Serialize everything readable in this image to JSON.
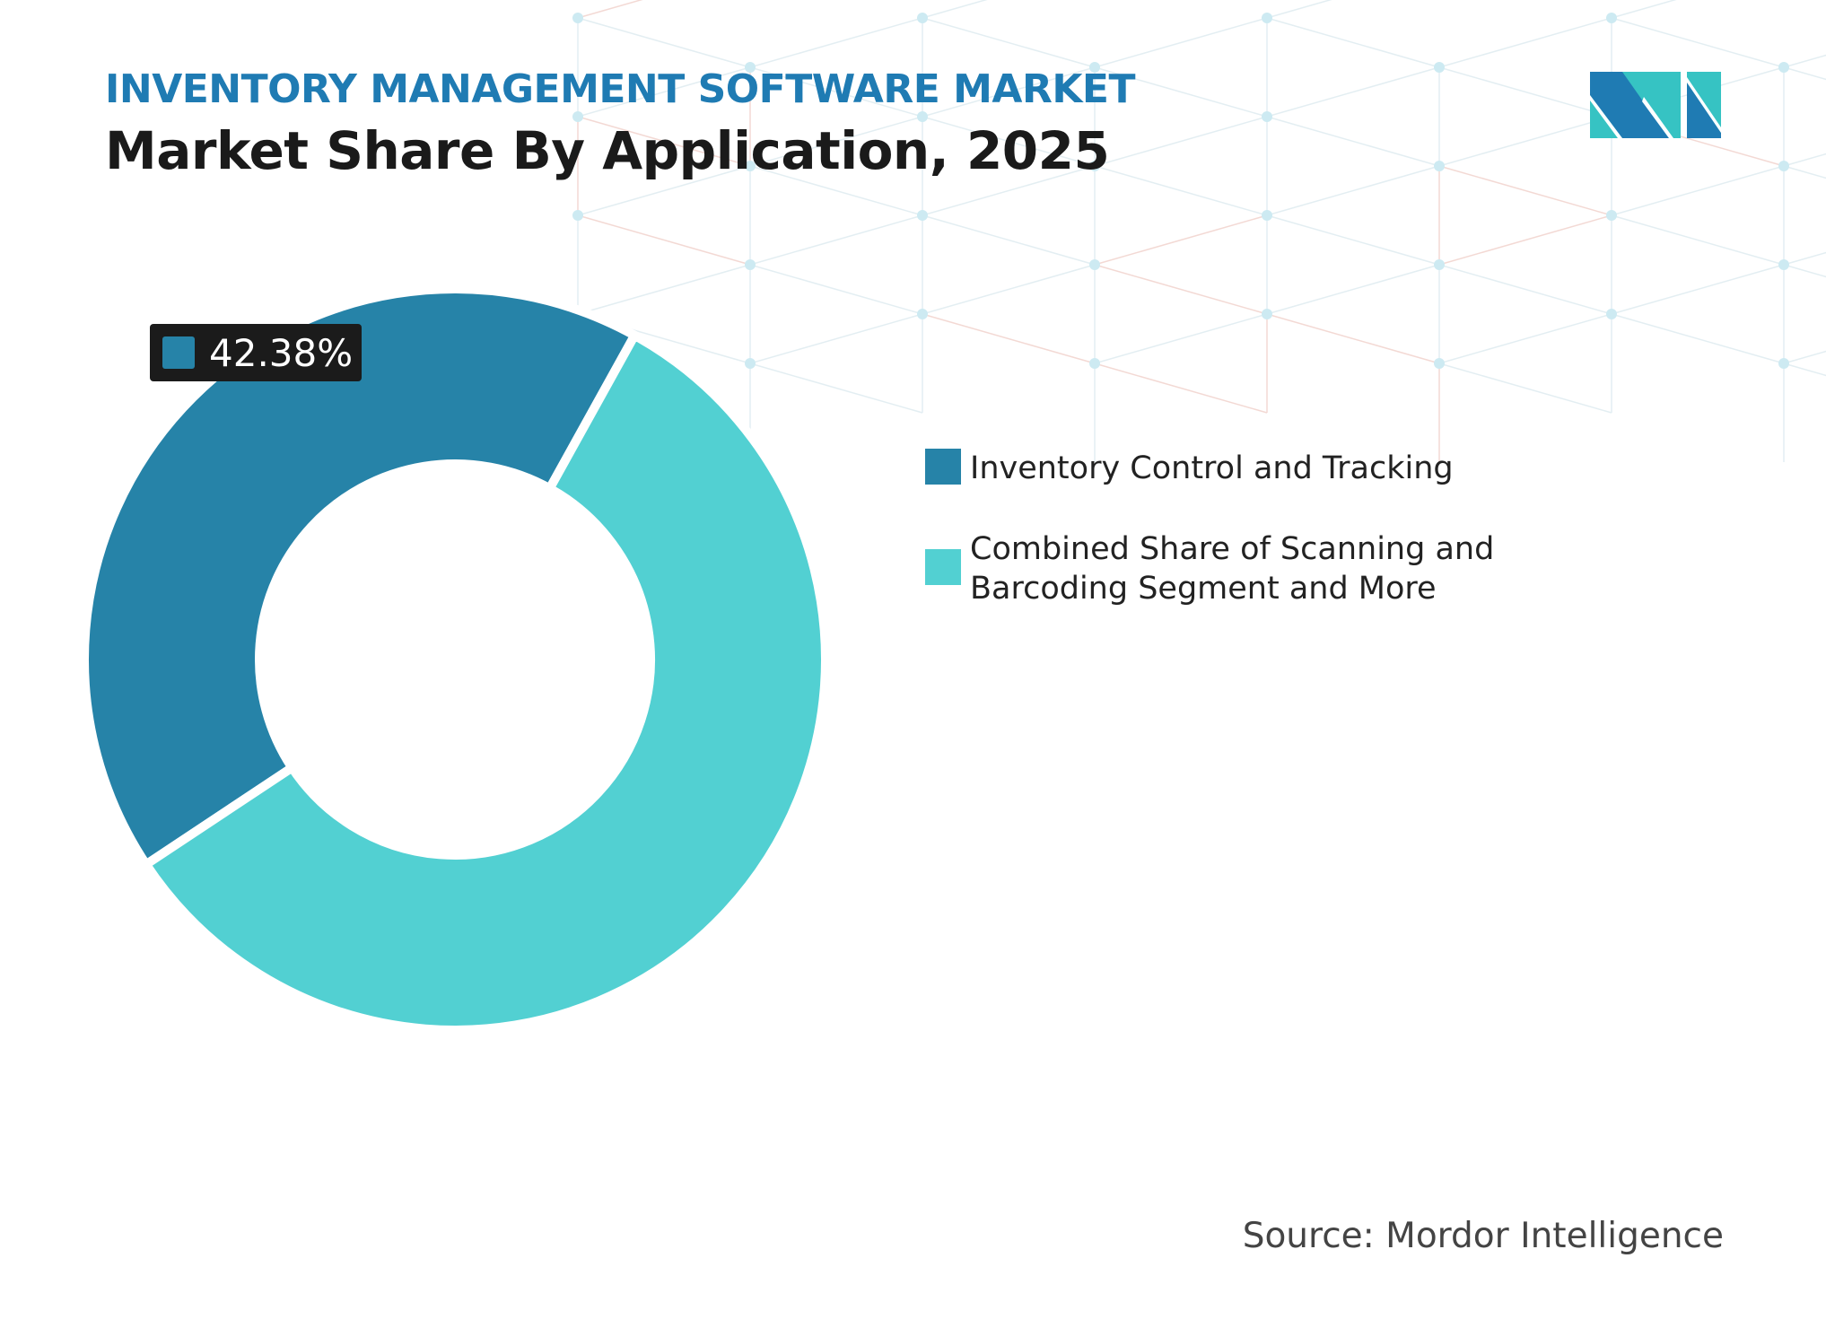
{
  "header": {
    "title": "INVENTORY MANAGEMENT SOFTWARE MARKET",
    "subtitle": "Market Share By Application, 2025"
  },
  "source": "Source: Mordor Intelligence",
  "logo": {
    "name": "mordor-intelligence-logo",
    "colors": [
      "#1f7bb3",
      "#36c3c3"
    ]
  },
  "chart_data": {
    "type": "pie",
    "donut": true,
    "title": "Market Share By Application, 2025",
    "categories": [
      "Inventory Control and Tracking",
      "Combined Share of Scanning and Barcoding Segment and More"
    ],
    "values": [
      42.38,
      57.62
    ],
    "colors": [
      "#2683a8",
      "#52d0d2"
    ],
    "data_labels": [
      "42.38%"
    ],
    "legend_position": "right"
  }
}
